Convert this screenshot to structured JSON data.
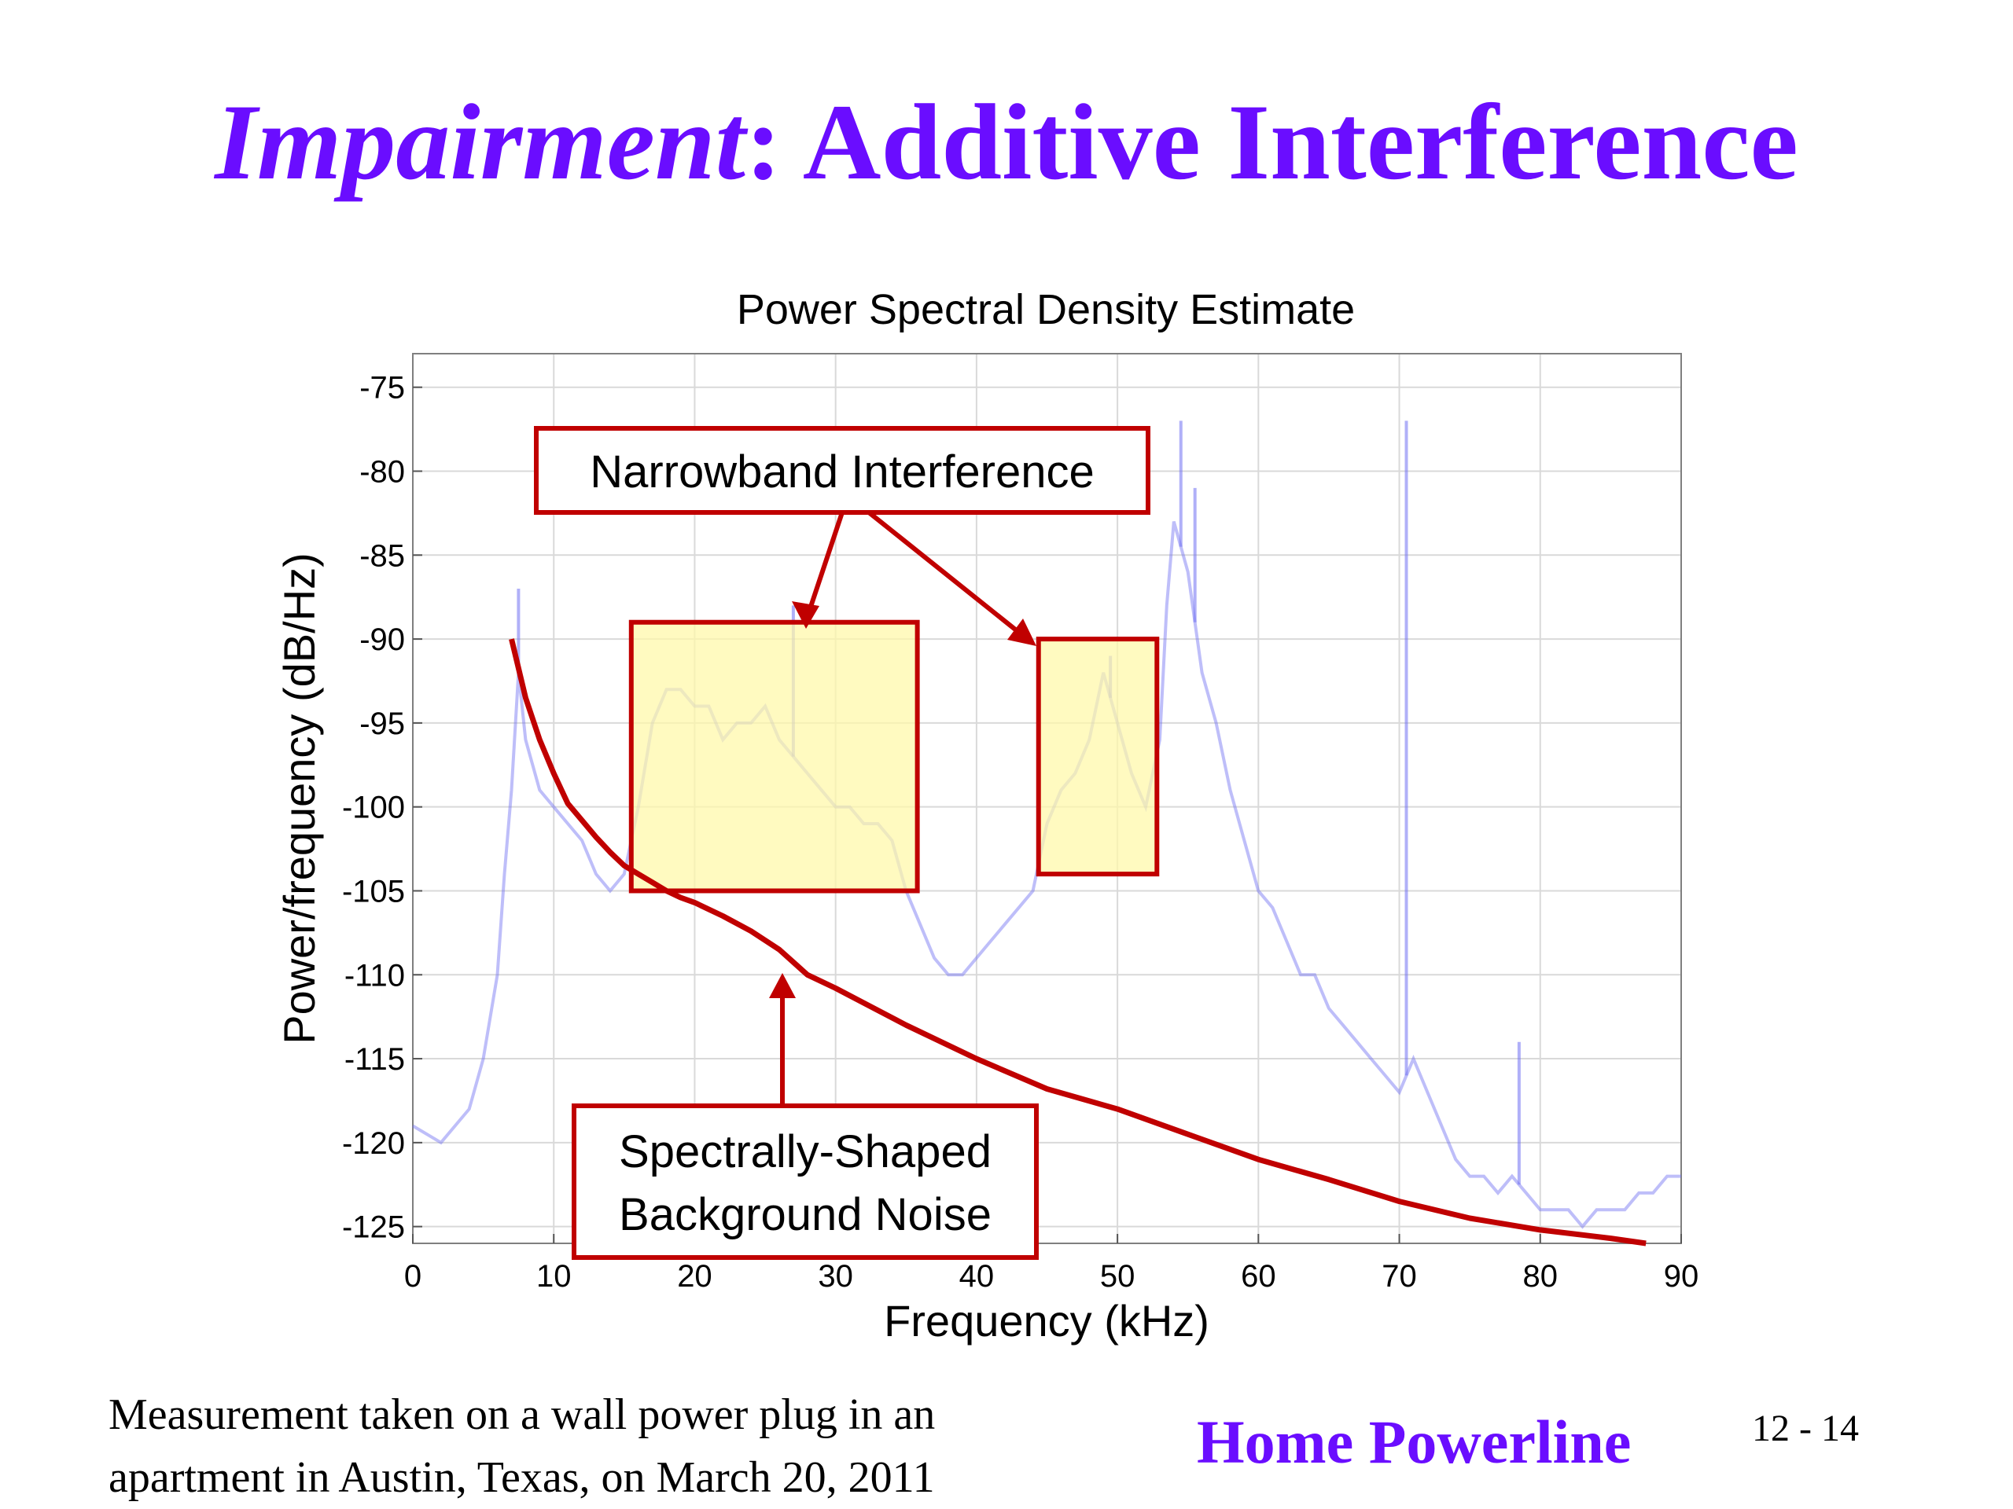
{
  "slide": {
    "title_italic": "Impairment",
    "title_rest": ": Additive Interference",
    "caption_line1": "Measurement taken on a wall power plug in an",
    "caption_line2": "apartment in Austin, Texas, on March 20, 2011",
    "footer_title": "Home Powerline",
    "page_number": "12 - 14"
  },
  "chart_data": {
    "type": "line",
    "title": "Power Spectral Density Estimate",
    "xlabel": "Frequency (kHz)",
    "ylabel": "Power/frequency (dB/Hz)",
    "xlim": [
      0,
      90
    ],
    "ylim": [
      -126,
      -73
    ],
    "xticks": [
      0,
      10,
      20,
      30,
      40,
      50,
      60,
      70,
      80,
      90
    ],
    "yticks": [
      -75,
      -80,
      -85,
      -90,
      -95,
      -100,
      -105,
      -110,
      -115,
      -120,
      -125
    ],
    "grid": true,
    "colors": {
      "psd": "#6f6ff2",
      "noise": "#c00000",
      "box_fill": "#fff8a8",
      "box_border": "#c00000"
    },
    "series": [
      {
        "role": "psd",
        "x": [
          0,
          2,
          4,
          5,
          6,
          6.5,
          7,
          7.5,
          8,
          9,
          10,
          11,
          12,
          13,
          14,
          15,
          16,
          17,
          18,
          19,
          20,
          21,
          22,
          23,
          24,
          25,
          26,
          27,
          28,
          29,
          30,
          31,
          32,
          33,
          34,
          35,
          36,
          37,
          38,
          39,
          40,
          41,
          42,
          43,
          44,
          45,
          46,
          47,
          48,
          49,
          50,
          51,
          52,
          53,
          53.5,
          54,
          55,
          56,
          57,
          58,
          59,
          60,
          61,
          62,
          63,
          64,
          65,
          66,
          67,
          68,
          69,
          70,
          71,
          72,
          73,
          74,
          75,
          76,
          77,
          78,
          79,
          80,
          81,
          82,
          83,
          84,
          85,
          86,
          87,
          88,
          89,
          90
        ],
        "y": [
          -119,
          -120,
          -118,
          -115,
          -110,
          -104,
          -99,
          -92,
          -96,
          -99,
          -100,
          -101,
          -102,
          -104,
          -105,
          -104,
          -100,
          -95,
          -93,
          -93,
          -94,
          -94,
          -96,
          -95,
          -95,
          -94,
          -96,
          -97,
          -98,
          -99,
          -100,
          -100,
          -101,
          -101,
          -102,
          -105,
          -107,
          -109,
          -110,
          -110,
          -109,
          -108,
          -107,
          -106,
          -105,
          -101,
          -99,
          -98,
          -96,
          -92,
          -95,
          -98,
          -100,
          -96,
          -88,
          -83,
          -86,
          -92,
          -95,
          -99,
          -102,
          -105,
          -106,
          -108,
          -110,
          -110,
          -112,
          -113,
          -114,
          -115,
          -116,
          -117,
          -115,
          -117,
          -119,
          -121,
          -122,
          -122,
          -123,
          -122,
          -123,
          -124,
          -124,
          -124,
          -125,
          -124,
          -124,
          -124,
          -123,
          -123,
          -122,
          -122
        ]
      },
      {
        "role": "psd-peaks",
        "x": [
          7.5,
          27,
          49.5,
          54.5,
          55.5,
          70.5,
          78.5
        ],
        "y": [
          -87,
          -88,
          -91,
          -77,
          -81,
          -77,
          -114
        ]
      },
      {
        "role": "noise",
        "x": [
          7,
          8,
          9,
          10,
          11,
          12,
          13,
          14,
          15,
          16,
          17,
          18,
          19,
          20,
          22,
          24,
          26,
          28,
          30,
          35,
          40,
          45,
          50,
          55,
          60,
          65,
          70,
          75,
          80,
          85,
          87.5
        ],
        "y": [
          -90,
          -93.5,
          -96,
          -98,
          -99.8,
          -100.8,
          -101.8,
          -102.7,
          -103.5,
          -104,
          -104.5,
          -105,
          -105.4,
          -105.7,
          -106.5,
          -107.4,
          -108.5,
          -110,
          -110.8,
          -113,
          -115,
          -116.8,
          -118,
          -119.5,
          -121,
          -122.2,
          -123.5,
          -124.5,
          -125.2,
          -125.7,
          -126
        ]
      }
    ],
    "annotations": {
      "narrowband": "Narrowband Interference",
      "noise_line1": "Spectrally-Shaped",
      "noise_line2": "Background Noise",
      "highlight_boxes": [
        {
          "x": [
            15.5,
            35.8
          ],
          "y": [
            -105,
            -89
          ]
        },
        {
          "x": [
            44.4,
            52.8
          ],
          "y": [
            -104,
            -90
          ]
        }
      ]
    }
  }
}
